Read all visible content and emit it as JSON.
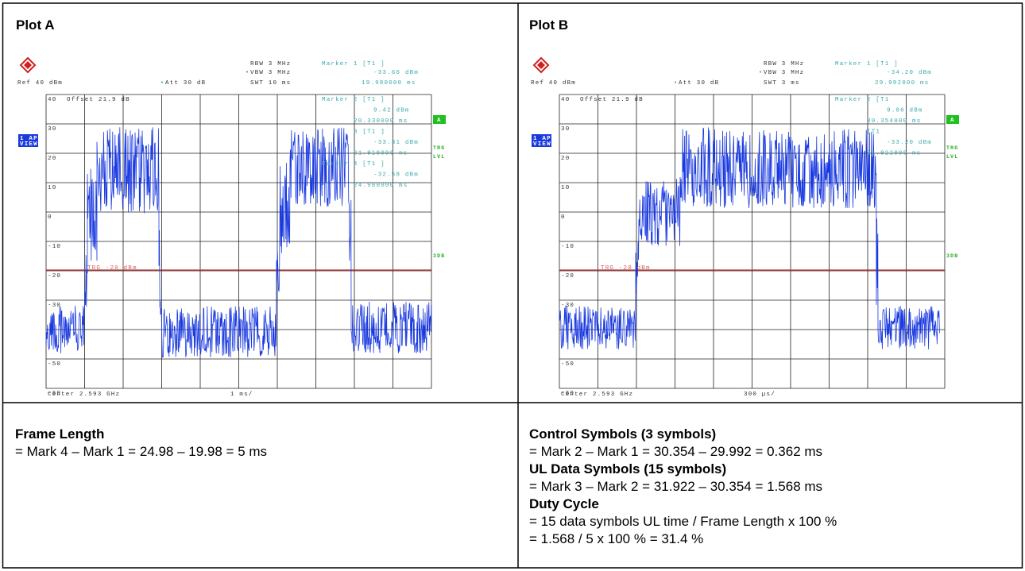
{
  "plots": [
    {
      "title": "Plot A",
      "rbw": "RBW 3 MHz",
      "vbw": "VBW 3 MHz",
      "ref": "Ref 40 dBm",
      "att": "Att 30 dB",
      "swt": "SWT 10 ms",
      "marker1": [
        "Marker 1 [T1 ]",
        "-33.66 dBm",
        "19.980000 ms"
      ],
      "marker_box": [
        "Marker 2 [T1 ]",
        "9.42 dBm",
        "20.330000 ms",
        "3 [T1 ]",
        "-33.31 dBm",
        "21.910000 ms",
        "Marker 4 [T1 ]",
        "-32.58 dBm",
        "24.980000 ms"
      ],
      "offset": "Offset 21.9 dB",
      "y_labels": [
        "40",
        "30",
        "20",
        "10",
        "0",
        "-10",
        "-20",
        "-30",
        "-50",
        "-60"
      ],
      "trg": "TRG -20 dBm",
      "center": "Center 2.593 GHz",
      "span": "1 ms/",
      "side_view": [
        "1 AP",
        "VIEW"
      ],
      "side_a": "A",
      "side_trg": [
        "TRG",
        "LVL"
      ],
      "side_3db": "3DB"
    },
    {
      "title": "Plot B",
      "rbw": "RBW 3 MHz",
      "vbw": "VBW 3 MHz",
      "ref": "Ref 40 dBm",
      "att": "Att 30 dB",
      "swt": "SWT 3 ms",
      "marker1": [
        "Marker 1 [T1 ]",
        "-34.20 dBm",
        "29.992000 ms"
      ],
      "marker_box": [
        "Marker 2 [T1",
        "9.06 dBm",
        "30.354000 ms",
        "[T1",
        "-33.20 dBm",
        "31.922000 ms"
      ],
      "offset": "Offset 21.9 dB",
      "y_labels": [
        "40",
        "30",
        "20",
        "10",
        "0",
        "-10",
        "-20",
        "-30",
        "-50",
        "-60"
      ],
      "trg": "TRG -20 dBm",
      "center": "Center 2.593 GHz",
      "span": "300 µs/",
      "side_view": [
        "1 AP",
        "VIEW"
      ],
      "side_a": "A",
      "side_trg": [
        "TRG",
        "LVL"
      ],
      "side_3db": "3DB"
    }
  ],
  "notes": [
    {
      "lines": [
        {
          "bold": "Frame Length"
        },
        {
          "text": "= Mark 4 – Mark 1 = 24.98 – 19.98 = 5 ms"
        }
      ]
    },
    {
      "lines": [
        {
          "bold": "Control Symbols (3 symbols)"
        },
        {
          "text": "= Mark 2 – Mark 1 = 30.354 – 29.992 = 0.362 ms"
        },
        {
          "bold": "UL Data Symbols (15 symbols)"
        },
        {
          "text": "= Mark 3 – Mark 2 = 31.922 – 30.354 = 1.568 ms"
        },
        {
          "bold": "Duty Cycle"
        },
        {
          "text": "= 15 data symbols UL time / Frame Length x 100 %"
        },
        {
          "text": "= 1.568 / 5 x 100 % = 31.4 %"
        }
      ]
    }
  ]
}
